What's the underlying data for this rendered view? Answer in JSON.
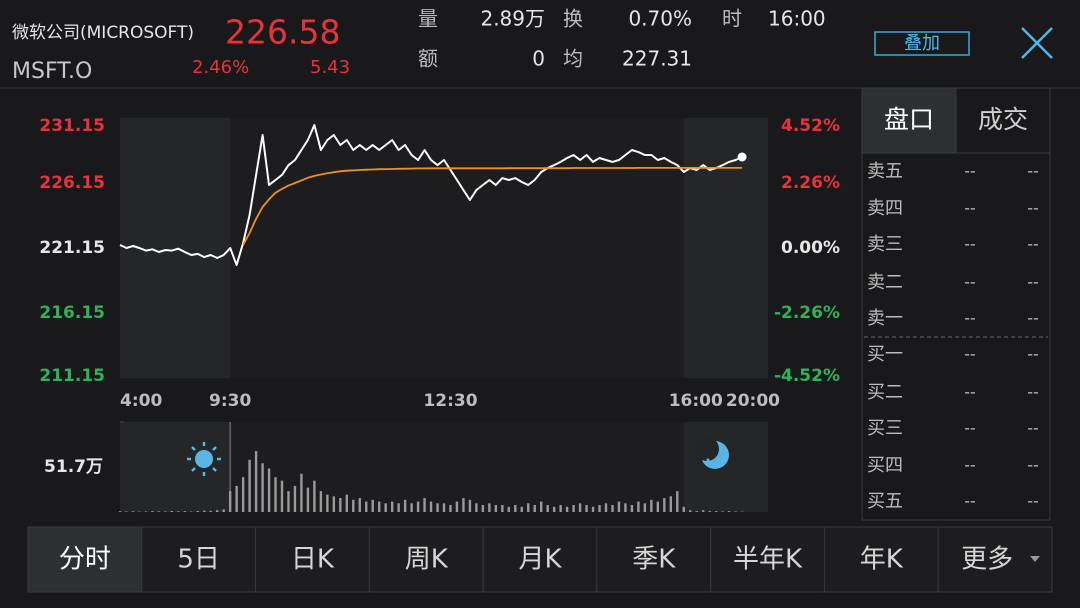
{
  "header": {
    "name": "微软公司(MICROSOFT)",
    "price": "226.58",
    "ticker": "MSFT.O",
    "change_pct": "2.46%",
    "change": "5.43",
    "stats": [
      {
        "label": "量",
        "value": "2.89万"
      },
      {
        "label": "换",
        "value": "0.70%"
      },
      {
        "label": "时",
        "value": "16:00"
      },
      {
        "label": "额",
        "value": "0"
      },
      {
        "label": "均",
        "value": "227.31"
      }
    ],
    "overlay_button": "叠加"
  },
  "chart_data": [
    {
      "type": "line",
      "categories": [
        "4:00",
        null,
        null,
        null,
        null,
        null,
        null,
        null,
        null,
        null,
        null,
        null,
        null,
        null,
        null,
        null,
        null,
        "9:30",
        null,
        null,
        null,
        null,
        null,
        null,
        null,
        null,
        null,
        null,
        null,
        null,
        null,
        null,
        null,
        null,
        null,
        null,
        null,
        null,
        null,
        null,
        null,
        null,
        null,
        null,
        null,
        null,
        null,
        null,
        null,
        null,
        null,
        "12:30",
        null,
        null,
        null,
        null,
        null,
        null,
        null,
        null,
        null,
        null,
        null,
        null,
        null,
        null,
        null,
        null,
        null,
        null,
        null,
        null,
        null,
        null,
        null,
        null,
        null,
        null,
        null,
        null,
        null,
        null,
        null,
        null,
        null,
        null,
        null,
        "16:00",
        null,
        null,
        null,
        null,
        null,
        null,
        null,
        null,
        null,
        null,
        null,
        null,
        "20:00"
      ],
      "series": [
        {
          "color": "#ffffff",
          "values": [
            221.38,
            221.15,
            221.3,
            221.15,
            220.95,
            221.05,
            220.84,
            221.0,
            220.95,
            221.1,
            220.84,
            220.61,
            220.7,
            220.45,
            220.61,
            220.38,
            220.61,
            221.15,
            219.84,
            221.53,
            223.69,
            226.77,
            229.84,
            226.0,
            226.38,
            226.77,
            227.53,
            227.92,
            228.69,
            229.46,
            230.61,
            228.69,
            229.46,
            229.84,
            229.07,
            229.46,
            228.69,
            229.07,
            228.69,
            229.07,
            228.69,
            229.07,
            229.46,
            228.69,
            229.07,
            228.3,
            227.92,
            228.69,
            227.92,
            227.53,
            227.92,
            227.15,
            226.38,
            225.61,
            224.84,
            225.61,
            226.0,
            226.38,
            226.0,
            226.53,
            226.38,
            226.53,
            226.23,
            226.0,
            226.38,
            227.0,
            227.3,
            227.53,
            227.77,
            228.07,
            228.3,
            227.92,
            228.3,
            227.77,
            228.07,
            227.92,
            227.77,
            227.92,
            228.3,
            228.69,
            228.53,
            228.3,
            228.3,
            227.92,
            228.07,
            227.77,
            227.53,
            227.0,
            227.3,
            227.15,
            227.53,
            227.15,
            227.3,
            227.53,
            227.77,
            227.92,
            228.15,
            null,
            null,
            null,
            null
          ]
        },
        {
          "color": "#f0901e",
          "values": [
            null,
            null,
            null,
            null,
            null,
            null,
            null,
            null,
            null,
            null,
            null,
            null,
            null,
            null,
            null,
            null,
            null,
            null,
            null,
            221.38,
            222.3,
            223.4,
            224.3,
            224.9,
            225.4,
            225.7,
            225.95,
            226.15,
            226.35,
            226.55,
            226.7,
            226.8,
            226.9,
            226.98,
            227.05,
            227.1,
            227.12,
            227.15,
            227.17,
            227.19,
            227.21,
            227.22,
            227.23,
            227.24,
            227.25,
            227.26,
            227.27,
            227.27,
            227.28,
            227.28,
            227.28,
            227.28,
            227.28,
            227.28,
            227.28,
            227.28,
            227.28,
            227.28,
            227.28,
            227.28,
            227.29,
            227.29,
            227.29,
            227.29,
            227.29,
            227.29,
            227.29,
            227.29,
            227.29,
            227.29,
            227.3,
            227.3,
            227.3,
            227.3,
            227.3,
            227.3,
            227.3,
            227.3,
            227.3,
            227.3,
            227.31,
            227.31,
            227.31,
            227.31,
            227.31,
            227.31,
            227.31,
            227.31,
            227.31,
            227.31,
            227.31,
            227.31,
            227.31,
            227.31,
            227.31,
            227.31,
            227.31,
            null,
            null,
            null,
            null
          ]
        }
      ],
      "ylim": [
        211.15,
        231.15
      ],
      "yticks": [
        231.15,
        226.15,
        221.15,
        216.15,
        211.15
      ],
      "y2lim": [
        -4.52,
        4.52
      ],
      "y2ticks": [
        {
          "value": 4.52,
          "label": "4.52%"
        },
        {
          "value": 2.26,
          "label": "2.26%"
        },
        {
          "value": 0,
          "label": "0.00%"
        },
        {
          "value": -2.26,
          "label": "-2.26%"
        },
        {
          "value": -4.52,
          "label": "-4.52%"
        }
      ],
      "up_color": "#e8323c",
      "down_color": "#2fb35a",
      "grid": false
    },
    {
      "type": "bar",
      "color": "#9a9a9a",
      "values": [
        0.5,
        0.3,
        0.4,
        0.2,
        0.3,
        0.5,
        0.4,
        0.3,
        0.6,
        0.4,
        0.5,
        0.3,
        0.6,
        0.8,
        0.7,
        1.0,
        1.5,
        12,
        15,
        20,
        30,
        35,
        28,
        25,
        20,
        18,
        12,
        15,
        22,
        14,
        18,
        12,
        10,
        9,
        8,
        10,
        7,
        8,
        6,
        7,
        6,
        5,
        6,
        5,
        7,
        5,
        6,
        8,
        6,
        5,
        5,
        4,
        6,
        8,
        7,
        5,
        4,
        5,
        4,
        4,
        3,
        4,
        3,
        5,
        4,
        6,
        4,
        3,
        4,
        3,
        4,
        5,
        4,
        3,
        4,
        5,
        4,
        6,
        5,
        4,
        6,
        5,
        7,
        6,
        8,
        9,
        12,
        3,
        1,
        0.5,
        1,
        0.5,
        0.5,
        0.3,
        0.5,
        0.3,
        0.2,
        null,
        null,
        null,
        null
      ],
      "ylim": [
        0,
        51.7
      ],
      "yticks": [
        {
          "value": 51.7,
          "label": "51.7万"
        }
      ]
    }
  ],
  "order_book": {
    "tabs": [
      "盘口",
      "成交"
    ],
    "rows": [
      {
        "label": "卖五",
        "price": "--",
        "volume": "--"
      },
      {
        "label": "卖四",
        "price": "--",
        "volume": "--"
      },
      {
        "label": "卖三",
        "price": "--",
        "volume": "--"
      },
      {
        "label": "卖二",
        "price": "--",
        "volume": "--"
      },
      {
        "label": "卖一",
        "price": "--",
        "volume": "--"
      },
      {
        "label": "买一",
        "price": "--",
        "volume": "--"
      },
      {
        "label": "买二",
        "price": "--",
        "volume": "--"
      },
      {
        "label": "买三",
        "price": "--",
        "volume": "--"
      },
      {
        "label": "买四",
        "price": "--",
        "volume": "--"
      },
      {
        "label": "买五",
        "price": "--",
        "volume": "--"
      }
    ]
  },
  "tabs": [
    "分时",
    "5日",
    "日K",
    "周K",
    "月K",
    "季K",
    "半年K",
    "年K",
    "更多"
  ]
}
